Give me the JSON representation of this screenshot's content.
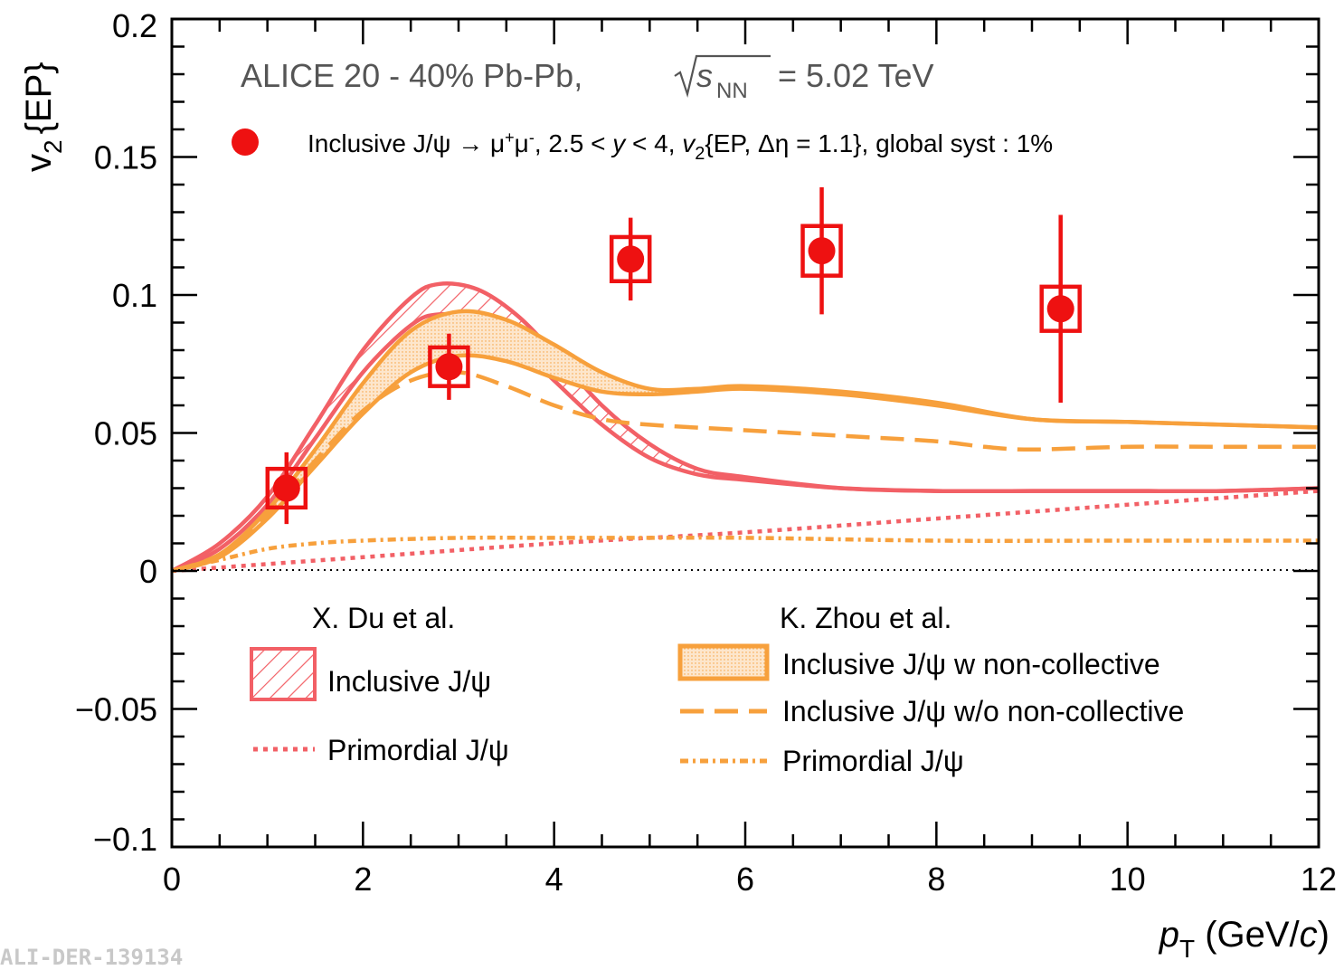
{
  "chart_data": {
    "type": "scatter",
    "title": "ALICE 20 - 40% Pb-Pb,",
    "title_energy_symbol": "s",
    "title_energy_sub": "NN",
    "title_energy_value": "= 5.02 TeV",
    "xlabel_main": "p",
    "xlabel_sub": "T",
    "xlabel_unit_open": " (GeV/",
    "xlabel_unit_c": "c",
    "xlabel_unit_close": ")",
    "ylabel_main": "v",
    "ylabel_sub": "2",
    "ylabel_tail": "{EP}",
    "xlim": [
      0,
      12
    ],
    "ylim": [
      -0.1,
      0.2
    ],
    "x_ticks": [
      "0",
      "2",
      "4",
      "6",
      "8",
      "10",
      "12"
    ],
    "y_ticks": [
      "−0.1",
      "−0.05",
      "0",
      "0.05",
      "0.1",
      "0.15",
      "0.2"
    ],
    "legend_data": {
      "p1": "Inclusive J/ψ → μ",
      "p2": "+",
      "p3": "μ",
      "p4": "-",
      "p5": ", 2.5 < ",
      "p6": "y",
      "p7": " < 4, ",
      "p8": "v",
      "p9": "2",
      "p10": "{EP, Δη = 1.1}, global syst : 1%"
    },
    "legend_du_header": "X. Du et al.",
    "legend_zhou_header": "K. Zhou et al.",
    "colors": {
      "data": "#ee1111",
      "du": "#f26066",
      "zhou": "#f7a03c",
      "axis": "#000000"
    },
    "data_points": [
      {
        "x": 1.2,
        "y": 0.03,
        "stat": 0.013,
        "syst_dy": 0.007
      },
      {
        "x": 2.9,
        "y": 0.074,
        "stat": 0.012,
        "syst_dy": 0.007
      },
      {
        "x": 4.8,
        "y": 0.113,
        "stat": 0.015,
        "syst_dy": 0.008
      },
      {
        "x": 6.8,
        "y": 0.116,
        "stat": 0.023,
        "syst_dy": 0.009
      },
      {
        "x": 9.3,
        "y": 0.095,
        "stat": 0.034,
        "syst_dy": 0.008
      }
    ],
    "series": [
      {
        "name": "Inclusive J/ψ",
        "group": "X. Du et al.",
        "style": "band-hatched",
        "x": [
          0,
          0.5,
          1.0,
          1.5,
          2.0,
          2.5,
          2.8,
          3.2,
          3.6,
          4.0,
          4.5,
          5.0,
          5.5,
          6.0,
          7.0,
          8.0,
          9.0,
          10.0,
          11.0,
          12.0
        ],
        "upper": [
          0,
          0.01,
          0.027,
          0.053,
          0.08,
          0.099,
          0.104,
          0.102,
          0.093,
          0.079,
          0.06,
          0.046,
          0.037,
          0.034,
          0.03,
          0.029,
          0.029,
          0.029,
          0.029,
          0.03
        ],
        "lower": [
          0,
          0.008,
          0.024,
          0.048,
          0.072,
          0.089,
          0.093,
          0.091,
          0.082,
          0.069,
          0.053,
          0.041,
          0.035,
          0.033,
          0.03,
          0.029,
          0.029,
          0.029,
          0.029,
          0.03
        ]
      },
      {
        "name": "Primordial J/ψ",
        "group": "X. Du et al.",
        "style": "dotted",
        "x": [
          0,
          2,
          4,
          6,
          8,
          10,
          12
        ],
        "y": [
          0,
          0.005,
          0.01,
          0.014,
          0.019,
          0.024,
          0.029
        ]
      },
      {
        "name": "Inclusive J/ψ w non-collective",
        "group": "K. Zhou et al.",
        "style": "band-dotted",
        "x": [
          0,
          0.5,
          1.0,
          1.5,
          2.0,
          2.5,
          3.0,
          3.5,
          4.0,
          4.5,
          5.0,
          5.5,
          6.0,
          7.0,
          8.0,
          9.0,
          10.0,
          11.0,
          12.0
        ],
        "upper": [
          0,
          0.006,
          0.022,
          0.044,
          0.068,
          0.087,
          0.094,
          0.091,
          0.082,
          0.072,
          0.066,
          0.066,
          0.067,
          0.065,
          0.061,
          0.055,
          0.054,
          0.053,
          0.052
        ],
        "lower": [
          0,
          0.005,
          0.019,
          0.038,
          0.057,
          0.072,
          0.078,
          0.076,
          0.07,
          0.065,
          0.064,
          0.065,
          0.066,
          0.064,
          0.06,
          0.055,
          0.054,
          0.053,
          0.052
        ]
      },
      {
        "name": "Inclusive J/ψ w/o non-collective",
        "group": "K. Zhou et al.",
        "style": "dashed",
        "x": [
          0,
          0.5,
          1.0,
          1.5,
          2.0,
          2.5,
          3.0,
          3.5,
          4.0,
          4.5,
          5.0,
          6.0,
          7.0,
          8.0,
          8.5,
          9.0,
          10.0,
          11.0,
          12.0
        ],
        "y": [
          0,
          0.006,
          0.02,
          0.04,
          0.058,
          0.069,
          0.072,
          0.067,
          0.06,
          0.055,
          0.053,
          0.051,
          0.049,
          0.047,
          0.045,
          0.044,
          0.045,
          0.045,
          0.045
        ]
      },
      {
        "name": "Primordial J/ψ",
        "group": "K. Zhou et al.",
        "style": "dashdot",
        "x": [
          0,
          0.5,
          1.0,
          1.5,
          2.0,
          3.0,
          4.0,
          5.0,
          6.0,
          8.0,
          10.0,
          12.0
        ],
        "y": [
          0,
          0.004,
          0.008,
          0.01,
          0.011,
          0.012,
          0.012,
          0.012,
          0.012,
          0.011,
          0.011,
          0.011
        ]
      }
    ],
    "watermark": "ALI-DER-139134"
  }
}
